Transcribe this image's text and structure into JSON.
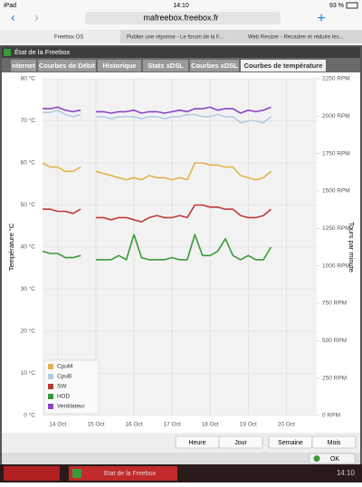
{
  "status_bar": {
    "device": "iPad",
    "time": "14:10",
    "battery": "93 %"
  },
  "browser": {
    "url": "mafreebox.freebox.fr",
    "tabs": [
      "Freebox OS",
      "Publier une réponse - Le forum de la F...",
      "Web Resizer - Recadrer et réduire les..."
    ]
  },
  "window": {
    "title": "État de la Freebox",
    "tabs": [
      "nternet",
      "Courbes de Débit",
      "Historique",
      "Stats xDSL",
      "Courbes xDSL",
      "Courbes de température"
    ],
    "buttons": [
      "Heure",
      "Jour",
      "Semaine",
      "Mois"
    ],
    "ok": "OK"
  },
  "taskbar": {
    "item": "Etat de la Freebox",
    "time": "14:10"
  },
  "chart_data": {
    "type": "line",
    "ylabel": "Température °C",
    "y2label": "Tours par minute",
    "x": [
      13.6,
      13.8,
      14.0,
      14.2,
      14.4,
      14.6,
      14.8,
      15.0,
      15.2,
      15.4,
      15.6,
      15.8,
      16.0,
      16.2,
      16.4,
      16.6,
      16.8,
      17.0,
      17.2,
      17.4,
      17.6,
      17.8,
      18.0,
      18.2,
      18.4,
      18.6,
      18.8,
      19.0,
      19.2,
      19.4,
      19.6
    ],
    "xlim": [
      13.6,
      20.8
    ],
    "xticks": [
      {
        "value": 14,
        "label": "14 Oct"
      },
      {
        "value": 15,
        "label": "15 Oct"
      },
      {
        "value": 16,
        "label": "16 Oct"
      },
      {
        "value": 17,
        "label": "17 Oct"
      },
      {
        "value": 18,
        "label": "18 Oct"
      },
      {
        "value": 19,
        "label": "19 Oct"
      },
      {
        "value": 20,
        "label": "20 Oct"
      }
    ],
    "ylim": [
      0,
      80
    ],
    "yticks": [
      {
        "value": 0,
        "label": "0 °C"
      },
      {
        "value": 10,
        "label": "10 °C"
      },
      {
        "value": 20,
        "label": "20 °C"
      },
      {
        "value": 30,
        "label": "30 °C"
      },
      {
        "value": 40,
        "label": "40 °C"
      },
      {
        "value": 50,
        "label": "50 °C"
      },
      {
        "value": 60,
        "label": "60 °C"
      },
      {
        "value": 70,
        "label": "70 °C"
      },
      {
        "value": 80,
        "label": "80 °C"
      }
    ],
    "y2lim": [
      0,
      2250
    ],
    "y2ticks": [
      {
        "value": 0,
        "label": "0 RPM"
      },
      {
        "value": 250,
        "label": "250 RPM"
      },
      {
        "value": 500,
        "label": "500 RPM"
      },
      {
        "value": 750,
        "label": "750 RPM"
      },
      {
        "value": 1000,
        "label": "1000 RPM"
      },
      {
        "value": 1250,
        "label": "1250 RPM"
      },
      {
        "value": 1500,
        "label": "1500 RPM"
      },
      {
        "value": 1750,
        "label": "1750 RPM"
      },
      {
        "value": 2000,
        "label": "2000 RPM"
      },
      {
        "value": 2250,
        "label": "2250 RPM"
      }
    ],
    "grid": true,
    "legend": "lower left",
    "series": [
      {
        "name": "CpuM",
        "color": "#e3b34c",
        "values": [
          60,
          59,
          59,
          58,
          58,
          59,
          null,
          58,
          57.5,
          57,
          56.5,
          56,
          56.5,
          56,
          57,
          56.5,
          56.5,
          56,
          56.5,
          56,
          60,
          60,
          59.5,
          59.5,
          59,
          59,
          57,
          56.5,
          56,
          56.5,
          58
        ]
      },
      {
        "name": "CpuB",
        "color": "#b3cbe3",
        "values": [
          72,
          72,
          72.5,
          71.5,
          71,
          71.5,
          null,
          71,
          71,
          70.5,
          71,
          71,
          71,
          70.5,
          71,
          71,
          70.5,
          71,
          71,
          71.5,
          71.5,
          71,
          71,
          71.5,
          71,
          71,
          69.5,
          70,
          70,
          69.5,
          71
        ]
      },
      {
        "name": "SW",
        "color": "#c03a3a",
        "values": [
          49,
          49,
          48.5,
          48.5,
          48,
          49,
          null,
          47,
          47,
          46.5,
          47,
          47,
          46.5,
          46,
          47,
          47.5,
          47,
          47,
          47.5,
          47,
          50,
          50,
          49.5,
          49.5,
          49,
          49,
          47.5,
          47,
          47,
          47.5,
          49
        ]
      },
      {
        "name": "HDD",
        "color": "#3a9a3a",
        "values": [
          39,
          38.5,
          38.5,
          37.5,
          37.5,
          38,
          null,
          37,
          37,
          37,
          38,
          37,
          43,
          37.5,
          37,
          37,
          37,
          37.5,
          37,
          37,
          43,
          38,
          38,
          39,
          42,
          38,
          37,
          38,
          37,
          37,
          40
        ]
      },
      {
        "name": "Ventilateur",
        "color": "#8a44c8",
        "axis": "y2",
        "values": [
          2050,
          2050,
          2060,
          2040,
          2030,
          2040,
          null,
          2030,
          2030,
          2020,
          2030,
          2030,
          2040,
          2020,
          2030,
          2030,
          2020,
          2030,
          2040,
          2030,
          2050,
          2050,
          2060,
          2040,
          2050,
          2050,
          2020,
          2040,
          2030,
          2040,
          2060
        ]
      }
    ]
  }
}
